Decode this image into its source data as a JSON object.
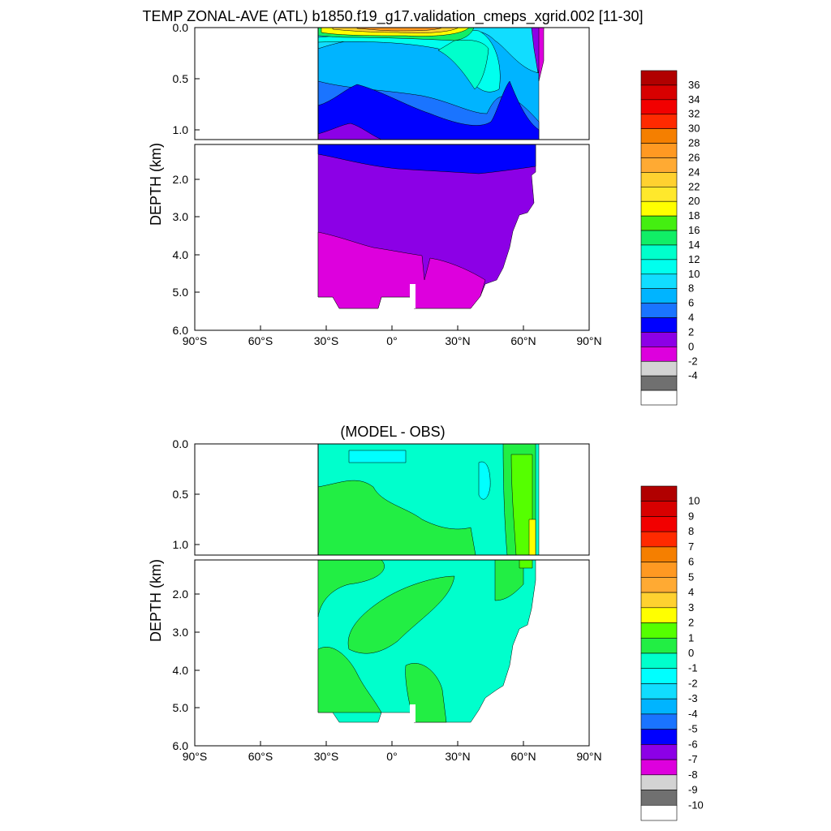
{
  "chart_data": [
    {
      "type": "heatmap",
      "title": "TEMP ZONAL-AVE (ATL) b1850.f19_g17.validation_cmeps_xgrid.002 [11-30]",
      "ylabel": "DEPTH (km)",
      "xlim": [
        -90,
        90
      ],
      "ylim": [
        6.0,
        0.0
      ],
      "x_ticks": [
        "90°S",
        "60°S",
        "30°S",
        "0°",
        "30°N",
        "60°N",
        "90°N"
      ],
      "y_ticks_upper": [
        "0.0",
        "0.5",
        "1.0"
      ],
      "y_ticks_lower": [
        "2.0",
        "3.0",
        "4.0",
        "5.0",
        "6.0"
      ],
      "colorbar": {
        "labels": [
          "36",
          "34",
          "32",
          "30",
          "28",
          "26",
          "24",
          "22",
          "20",
          "18",
          "16",
          "14",
          "12",
          "10",
          "8",
          "6",
          "4",
          "2",
          "0",
          "-2",
          "-4"
        ],
        "colors": [
          "#b10000",
          "#d80000",
          "#f20000",
          "#ff2a00",
          "#f57f00",
          "#ff9922",
          "#ffaa33",
          "#ffd130",
          "#ffe82c",
          "#ffff00",
          "#44ee11",
          "#11ee66",
          "#00ffcc",
          "#00ffee",
          "#11ddff",
          "#00b4ff",
          "#1a74ff",
          "#0000ff",
          "#8c00e6",
          "#dd00dd",
          "#d3d3d3",
          "#707070",
          "#ffffff"
        ]
      },
      "domain_lat": [
        -34,
        67
      ],
      "surface_warm_max": 28,
      "deep_values": {
        "mid_depth": 3,
        "bottom": 1
      }
    },
    {
      "type": "heatmap",
      "title": "(MODEL - OBS)",
      "ylabel": "DEPTH (km)",
      "xlim": [
        -90,
        90
      ],
      "ylim": [
        6.0,
        0.0
      ],
      "x_ticks": [
        "90°S",
        "60°S",
        "30°S",
        "0°",
        "30°N",
        "60°N",
        "90°N"
      ],
      "y_ticks_upper": [
        "0.0",
        "0.5",
        "1.0"
      ],
      "y_ticks_lower": [
        "2.0",
        "3.0",
        "4.0",
        "5.0",
        "6.0"
      ],
      "colorbar": {
        "labels": [
          "10",
          "9",
          "8",
          "7",
          "6",
          "5",
          "4",
          "3",
          "2",
          "1",
          "0",
          "-1",
          "-2",
          "-3",
          "-4",
          "-5",
          "-6",
          "-7",
          "-8",
          "-9",
          "-10"
        ],
        "colors": [
          "#b10000",
          "#d80000",
          "#f20000",
          "#ff2a00",
          "#f57f00",
          "#ff9922",
          "#ffaa33",
          "#ffd130",
          "#ffff00",
          "#55ff00",
          "#22ee44",
          "#00ffcc",
          "#00ffff",
          "#11ddff",
          "#00b4ff",
          "#1a74ff",
          "#0000ff",
          "#8c00e6",
          "#dd00dd",
          "#d3d3d3",
          "#707070",
          "#ffffff"
        ]
      },
      "domain_lat": [
        -34,
        67
      ],
      "dominant_range": [
        -2,
        1
      ]
    }
  ]
}
